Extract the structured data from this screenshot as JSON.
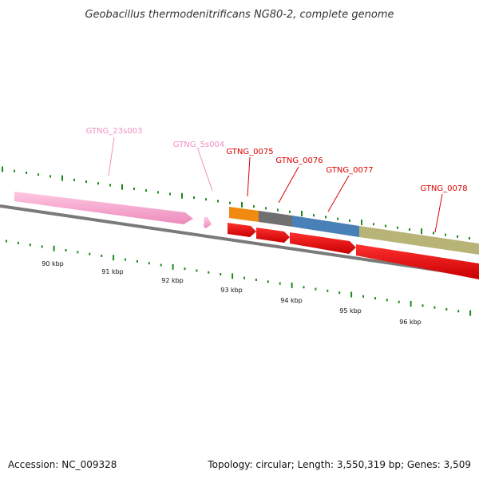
{
  "title": "Geobacillus thermodenitrificans NG80-2, complete genome",
  "footer": {
    "accession": "Accession: NC_009328",
    "summary": "Topology: circular; Length: 3,550,319 bp; Genes: 3,509"
  },
  "scale_labels": [
    "90 kbp",
    "91 kbp",
    "92 kbp",
    "93 kbp",
    "94 kbp",
    "95 kbp",
    "96 kbp"
  ],
  "genes": [
    {
      "name": "GTNG_23s003",
      "type": "rRNA"
    },
    {
      "name": "GTNG_5s004",
      "type": "rRNA"
    },
    {
      "name": "GTNG_0075",
      "type": "CDS"
    },
    {
      "name": "GTNG_0076",
      "type": "CDS"
    },
    {
      "name": "GTNG_0077",
      "type": "CDS"
    },
    {
      "name": "GTNG_0078",
      "type": "CDS"
    }
  ],
  "colors": {
    "rrna": "#f8a8d0",
    "cds": "#ff0000",
    "backbone": "#777777",
    "ticks": "#1a8a1a",
    "label_rrna": "#f090c0",
    "label_cds": "#dd0000",
    "cog_orange": "#f08a10",
    "cog_gray": "#707070",
    "cog_blue": "#4a80b8",
    "cog_olive": "#b8b478"
  }
}
